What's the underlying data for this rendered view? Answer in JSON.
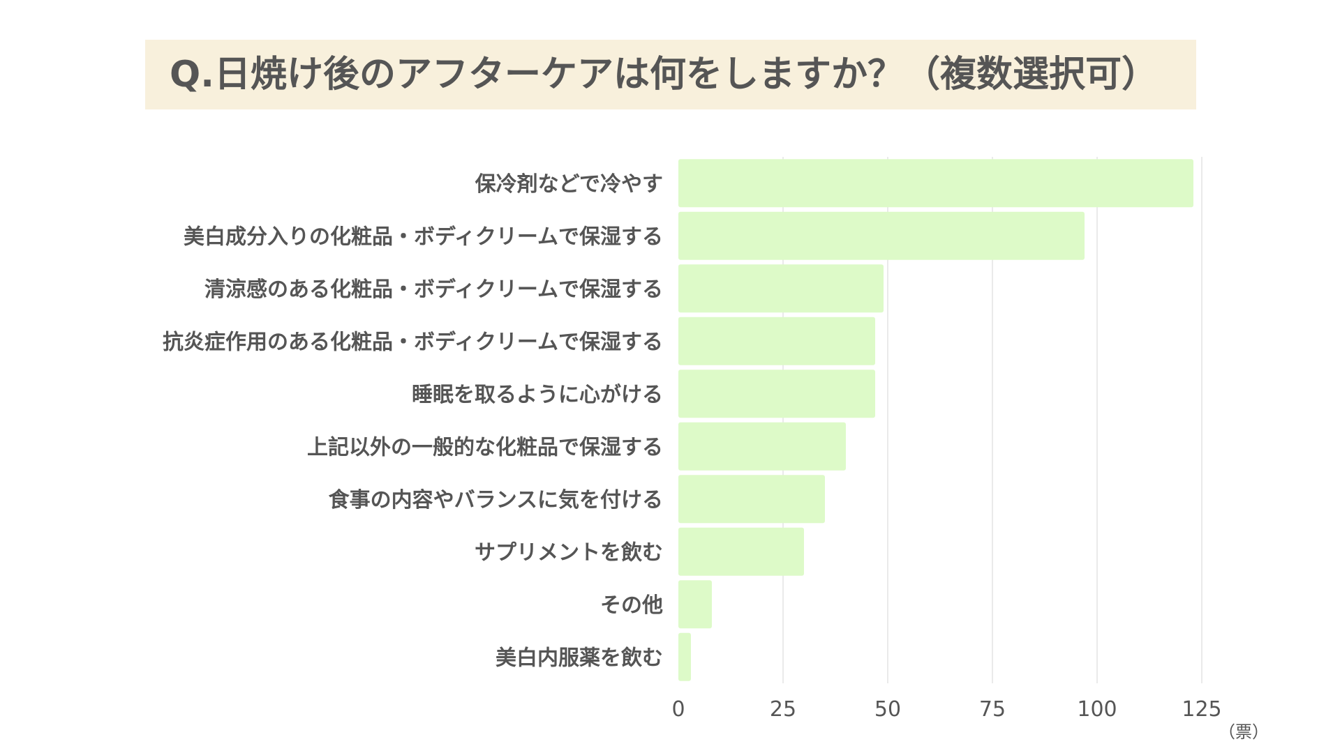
{
  "chart_data": {
    "type": "bar",
    "orientation": "horizontal",
    "title": "Q.日焼け後のアフターケアは何をしますか？（複数選択可）",
    "categories": [
      "保冷剤などで冷やす",
      "美白成分入りの化粧品・ボディクリームで保湿する",
      "清涼感のある化粧品・ボディクリームで保湿する",
      "抗炎症作用のある化粧品・ボディクリームで保湿する",
      "睡眠を取るように心がける",
      "上記以外の一般的な化粧品で保湿する",
      "食事の内容やバランスに気を付ける",
      "サプリメントを飲む",
      "その他",
      "美白内服薬を飲む"
    ],
    "values": [
      123,
      97,
      49,
      47,
      47,
      40,
      35,
      30,
      8,
      3
    ],
    "xlim": [
      0,
      125
    ],
    "xticks": [
      0,
      25,
      50,
      75,
      100,
      125
    ],
    "xunit": "（票）",
    "grid": true,
    "colors": {
      "bar": "#ddfac8",
      "grid": "#e4e4e4",
      "title_band": "#f8f0dc",
      "text": "#555555"
    }
  }
}
